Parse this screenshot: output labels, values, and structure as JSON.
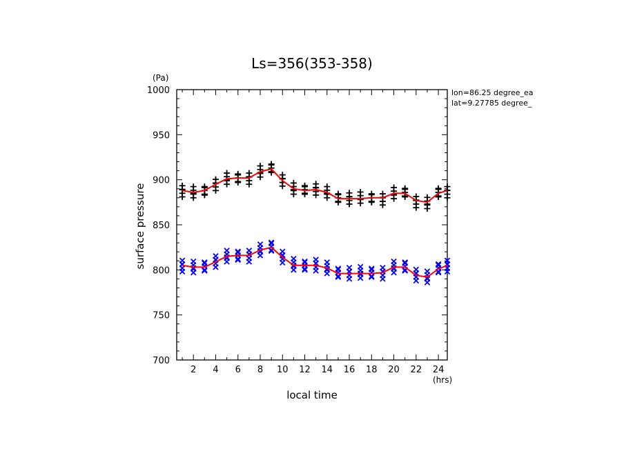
{
  "chart_data": {
    "type": "scatter",
    "title": "Ls=356(353-358)",
    "xlabel": "local time",
    "ylabel": "surface pressure",
    "x_unit": "(hrs)",
    "y_unit": "(Pa)",
    "xlim": [
      0.5,
      24.8
    ],
    "ylim": [
      700,
      1000
    ],
    "x_ticks": [
      2,
      4,
      6,
      8,
      10,
      12,
      14,
      16,
      18,
      20,
      22,
      24
    ],
    "y_ticks": [
      700,
      750,
      800,
      850,
      900,
      950,
      1000
    ],
    "annotations": [
      "lon=86.25 degree_ea",
      "lat=9.27785 degree_"
    ],
    "grid": false,
    "x": [
      1,
      2,
      3,
      4,
      5,
      6,
      7,
      8,
      9,
      10,
      11,
      12,
      13,
      14,
      15,
      16,
      17,
      18,
      19,
      20,
      21,
      22,
      23,
      24,
      24.8
    ],
    "series": [
      {
        "marker": "+",
        "color": "#000000",
        "mean": [
          888,
          886,
          888,
          895,
          901,
          902,
          902,
          909,
          913,
          900,
          890,
          889,
          890,
          886,
          880,
          880,
          880,
          880,
          879,
          885,
          886,
          876,
          874,
          886,
          887
        ],
        "spread": 6
      },
      {
        "marker": "x",
        "color": "#0000ff",
        "mean": [
          805,
          803,
          804,
          810,
          815,
          816,
          816,
          822,
          826,
          815,
          806,
          805,
          806,
          802,
          797,
          797,
          797,
          797,
          797,
          803,
          804,
          795,
          792,
          802,
          805
        ],
        "spread": 6
      }
    ],
    "lines": [
      {
        "color": "#ff0000",
        "values": [
          888,
          886,
          888,
          895,
          901,
          902,
          902,
          909,
          912,
          899,
          890,
          888,
          889,
          886,
          879,
          879,
          879,
          880,
          880,
          885,
          885,
          877,
          875,
          885,
          888
        ]
      },
      {
        "color": "#ff0000",
        "values": [
          805,
          803,
          803,
          809,
          815,
          816,
          816,
          822,
          825,
          814,
          805,
          805,
          805,
          802,
          796,
          796,
          796,
          796,
          797,
          803,
          803,
          794,
          792,
          801,
          805
        ]
      }
    ]
  }
}
